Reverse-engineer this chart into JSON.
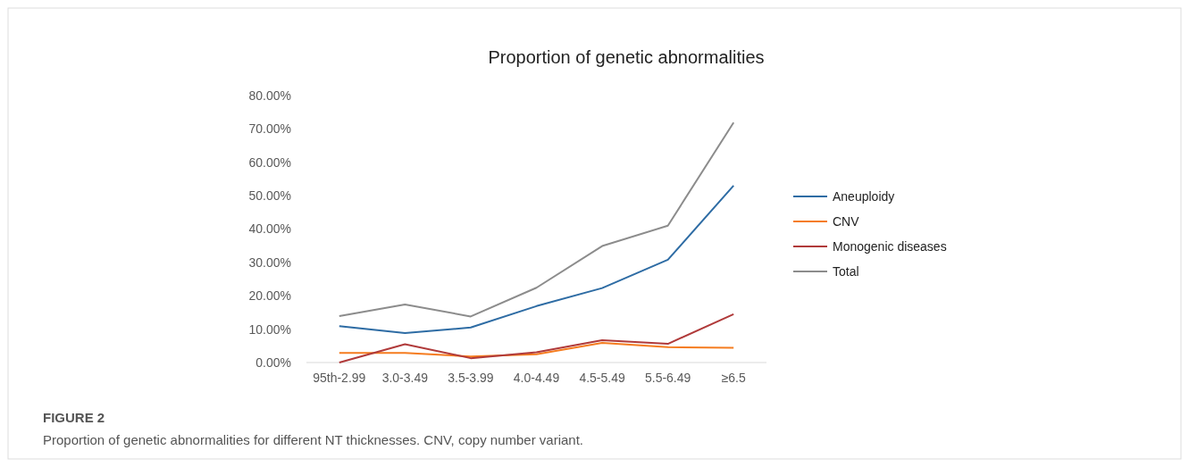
{
  "chart_data": {
    "type": "line",
    "title": "Proportion of genetic abnormalities",
    "categories": [
      "95th-2.99",
      "3.0-3.49",
      "3.5-3.99",
      "4.0-4.49",
      "4.5-5.49",
      "5.5-6.49",
      "≥6.5"
    ],
    "series": [
      {
        "name": "Aneuploidy",
        "color": "#2e6ca4",
        "values": [
          10.9,
          8.8,
          10.5,
          16.9,
          22.3,
          30.8,
          53.0
        ]
      },
      {
        "name": "CNV",
        "color": "#f57c1f",
        "values": [
          2.9,
          2.9,
          1.8,
          2.5,
          5.9,
          4.6,
          4.4
        ]
      },
      {
        "name": "Monogenic diseases",
        "color": "#b03a3a",
        "values": [
          0,
          5.5,
          1.3,
          3.1,
          6.7,
          5.6,
          14.5
        ]
      },
      {
        "name": "Total",
        "color": "#8c8c8c",
        "values": [
          13.9,
          17.4,
          13.8,
          22.4,
          34.9,
          41.0,
          71.9
        ]
      }
    ],
    "ylim": [
      0,
      80
    ],
    "yticks": [
      {
        "value": 0,
        "label": "0.00%"
      },
      {
        "value": 10,
        "label": "10.00%"
      },
      {
        "value": 20,
        "label": "20.00%"
      },
      {
        "value": 30,
        "label": "30.00%"
      },
      {
        "value": 40,
        "label": "40.00%"
      },
      {
        "value": 50,
        "label": "50.00%"
      },
      {
        "value": 60,
        "label": "60.00%"
      },
      {
        "value": 70,
        "label": "70.00%"
      },
      {
        "value": 80,
        "label": "80.00%"
      }
    ],
    "grid": false,
    "legend": "right",
    "marker": "none",
    "line_style": "solid",
    "annotations": [
      "FIGURE 2",
      "Proportion of genetic abnormalities for different NT thicknesses. CNV, copy number variant."
    ]
  }
}
